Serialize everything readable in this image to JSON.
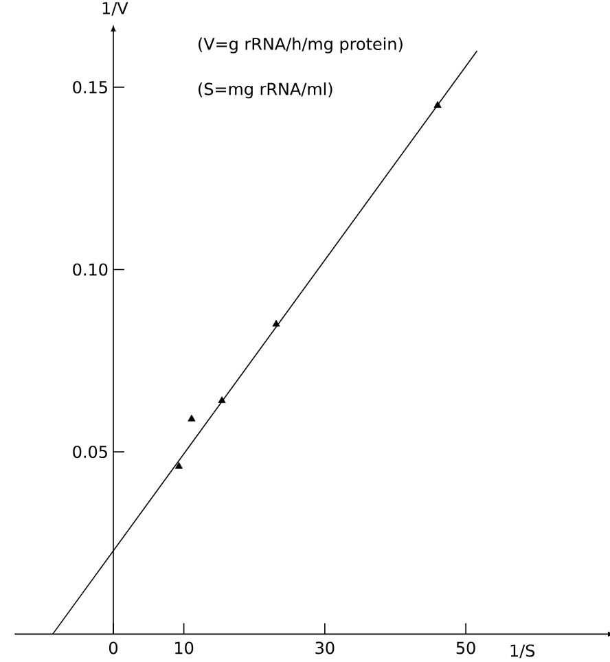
{
  "chart_data": {
    "type": "scatter",
    "xlabel": "1/S",
    "ylabel": "1/V",
    "annotations": [
      "(V=g rRNA/h/mg protein)",
      "(S=mg rRNA/ml)"
    ],
    "xlim": [
      -14,
      70
    ],
    "ylim": [
      0,
      0.165
    ],
    "xticks": [
      0,
      10,
      30,
      50
    ],
    "yticks": [
      0.05,
      {
        "value": 0.1,
        "label": "0.10"
      },
      0.15
    ],
    "marker": "triangle",
    "series": [
      {
        "type": "scatter",
        "color": "#000000",
        "x": [
          9.3,
          11.1,
          15.4,
          23.1,
          46.0
        ],
        "values": [
          0.046,
          0.059,
          0.064,
          0.085,
          0.145
        ]
      },
      {
        "type": "line",
        "color": "#000000",
        "marker": "none",
        "line_style": "solid",
        "x": [
          -8.6,
          51.6
        ],
        "values": [
          0,
          0.16
        ]
      }
    ]
  }
}
